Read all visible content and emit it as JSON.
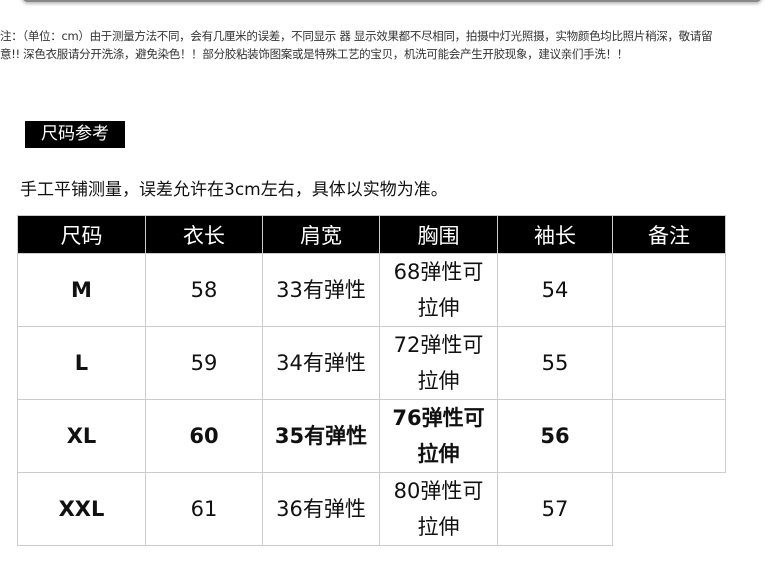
{
  "note": {
    "line1": "注：（单位：cm）由于测量方法不同，会有几厘米的误差，不同显示 器 显示效果都不尽相同，拍摄中灯光照摄，实物颜色均比照片稍深，敬请留",
    "line2": "意!! 深色衣服请分开洗涤，避免染色！！部分胶粘装饰图案或是特殊工艺的宝贝，机洗可能会产生开胶现象，建议亲们手洗！！"
  },
  "section_tag": "尺码参考",
  "description": "手工平铺测量，误差允许在3cm左右，具体以实物为准。",
  "table": {
    "headers": [
      "尺码",
      "衣长",
      "肩宽",
      "胸围",
      "袖长",
      "备注"
    ],
    "rows": [
      [
        "M",
        "58",
        "33有弹性",
        "68弹性可拉伸",
        "54",
        ""
      ],
      [
        "L",
        "59",
        "34有弹性",
        "72弹性可拉伸",
        "55",
        ""
      ],
      [
        "XL",
        "60",
        "35有弹性",
        "76弹性可拉伸",
        "56",
        ""
      ],
      [
        "XXL",
        "61",
        "36有弹性",
        "80弹性可拉伸",
        "57",
        ""
      ]
    ]
  }
}
